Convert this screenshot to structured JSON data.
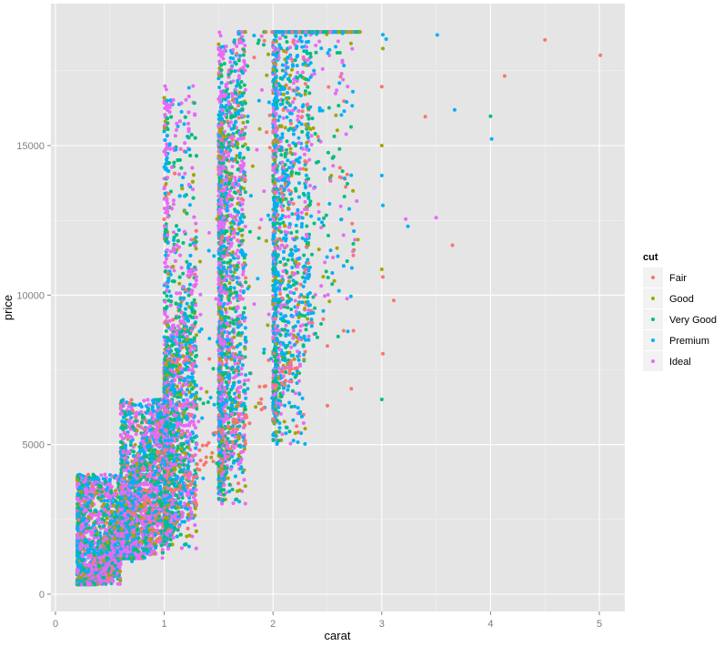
{
  "chart_data": {
    "type": "scatter",
    "title": "",
    "xlabel": "carat",
    "ylabel": "price",
    "xlim": [
      -0.05,
      5.25
    ],
    "ylim": [
      -1000,
      19500
    ],
    "x_ticks": [
      0,
      1,
      2,
      3,
      4,
      5
    ],
    "y_ticks": [
      0,
      5000,
      10000,
      15000
    ],
    "x_tick_labels": [
      "0",
      "1",
      "2",
      "3",
      "4",
      "5"
    ],
    "y_tick_labels": [
      "0",
      "5000",
      "10000",
      "15000"
    ],
    "grid": true,
    "legend_position": "right",
    "legend": {
      "title": "cut",
      "entries": [
        {
          "label": "Fair",
          "color": "#F8766D"
        },
        {
          "label": "Good",
          "color": "#A3A500"
        },
        {
          "label": "Very Good",
          "color": "#00BF7D"
        },
        {
          "label": "Premium",
          "color": "#00B0F6"
        },
        {
          "label": "Ideal",
          "color": "#E76BF3"
        }
      ]
    },
    "dense_cloud": {
      "description": "approx. 54k points; price rises steeply with carat; vertical bands at 1.0, 1.5, 2.0 carat; price capped near 18800",
      "bands": [
        {
          "x_from": 0.2,
          "x_to": 0.6,
          "y_from": 330,
          "y_to": 4000,
          "n": 3200
        },
        {
          "x_from": 0.6,
          "x_to": 0.99,
          "y_from": 1200,
          "y_to": 6500,
          "n": 2600
        },
        {
          "x_from": 1.0,
          "x_to": 1.3,
          "y_from": 1500,
          "y_to": 17000,
          "n": 3200
        },
        {
          "x_from": 1.5,
          "x_to": 1.75,
          "y_from": 3000,
          "y_to": 18800,
          "n": 1900
        },
        {
          "x_from": 2.0,
          "x_to": 2.3,
          "y_from": 5000,
          "y_to": 18800,
          "n": 1700
        },
        {
          "x_from": 2.3,
          "x_to": 2.75,
          "y_from": 8500,
          "y_to": 18800,
          "n": 350
        }
      ]
    },
    "outliers": [
      {
        "x": 5.01,
        "y": 18018,
        "cut": "Fair"
      },
      {
        "x": 4.5,
        "y": 18531,
        "cut": "Fair"
      },
      {
        "x": 4.13,
        "y": 17329,
        "cut": "Fair"
      },
      {
        "x": 4.01,
        "y": 15223,
        "cut": "Premium"
      },
      {
        "x": 4.0,
        "y": 15984,
        "cut": "Very Good"
      },
      {
        "x": 3.67,
        "y": 16193,
        "cut": "Premium"
      },
      {
        "x": 3.51,
        "y": 18701,
        "cut": "Premium"
      },
      {
        "x": 3.4,
        "y": 15964,
        "cut": "Fair"
      },
      {
        "x": 3.65,
        "y": 11668,
        "cut": "Fair"
      },
      {
        "x": 3.5,
        "y": 12587,
        "cut": "Ideal"
      },
      {
        "x": 3.24,
        "y": 12300,
        "cut": "Premium"
      },
      {
        "x": 3.22,
        "y": 12545,
        "cut": "Ideal"
      },
      {
        "x": 3.11,
        "y": 9823,
        "cut": "Fair"
      },
      {
        "x": 3.01,
        "y": 18710,
        "cut": "Premium"
      },
      {
        "x": 3.01,
        "y": 18242,
        "cut": "Good"
      },
      {
        "x": 3.04,
        "y": 18559,
        "cut": "Premium"
      },
      {
        "x": 3.0,
        "y": 16970,
        "cut": "Fair"
      },
      {
        "x": 3.0,
        "y": 15000,
        "cut": "Good"
      },
      {
        "x": 3.0,
        "y": 14000,
        "cut": "Premium"
      },
      {
        "x": 3.01,
        "y": 13000,
        "cut": "Premium"
      },
      {
        "x": 3.0,
        "y": 10863,
        "cut": "Good"
      },
      {
        "x": 3.01,
        "y": 10607,
        "cut": "Fair"
      },
      {
        "x": 3.01,
        "y": 8040,
        "cut": "Fair"
      },
      {
        "x": 3.0,
        "y": 6512,
        "cut": "Very Good"
      },
      {
        "x": 2.74,
        "y": 8807,
        "cut": "Fair"
      },
      {
        "x": 2.72,
        "y": 6870,
        "cut": "Fair"
      },
      {
        "x": 2.5,
        "y": 8300,
        "cut": "Fair"
      },
      {
        "x": 2.5,
        "y": 6300,
        "cut": "Fair"
      },
      {
        "x": 2.8,
        "y": 18800,
        "cut": "Good"
      }
    ]
  },
  "plot": {
    "panel_background": "#E5E5E5",
    "grid_major_color": "#FFFFFF",
    "grid_minor_color": "#F2F2F2"
  },
  "legend": {
    "title": "cut",
    "items": [
      {
        "label": "Fair",
        "color": "#F8766D"
      },
      {
        "label": "Good",
        "color": "#A3A500"
      },
      {
        "label": "Very Good",
        "color": "#00BF7D"
      },
      {
        "label": "Premium",
        "color": "#00B0F6"
      },
      {
        "label": "Ideal",
        "color": "#E76BF3"
      }
    ]
  }
}
